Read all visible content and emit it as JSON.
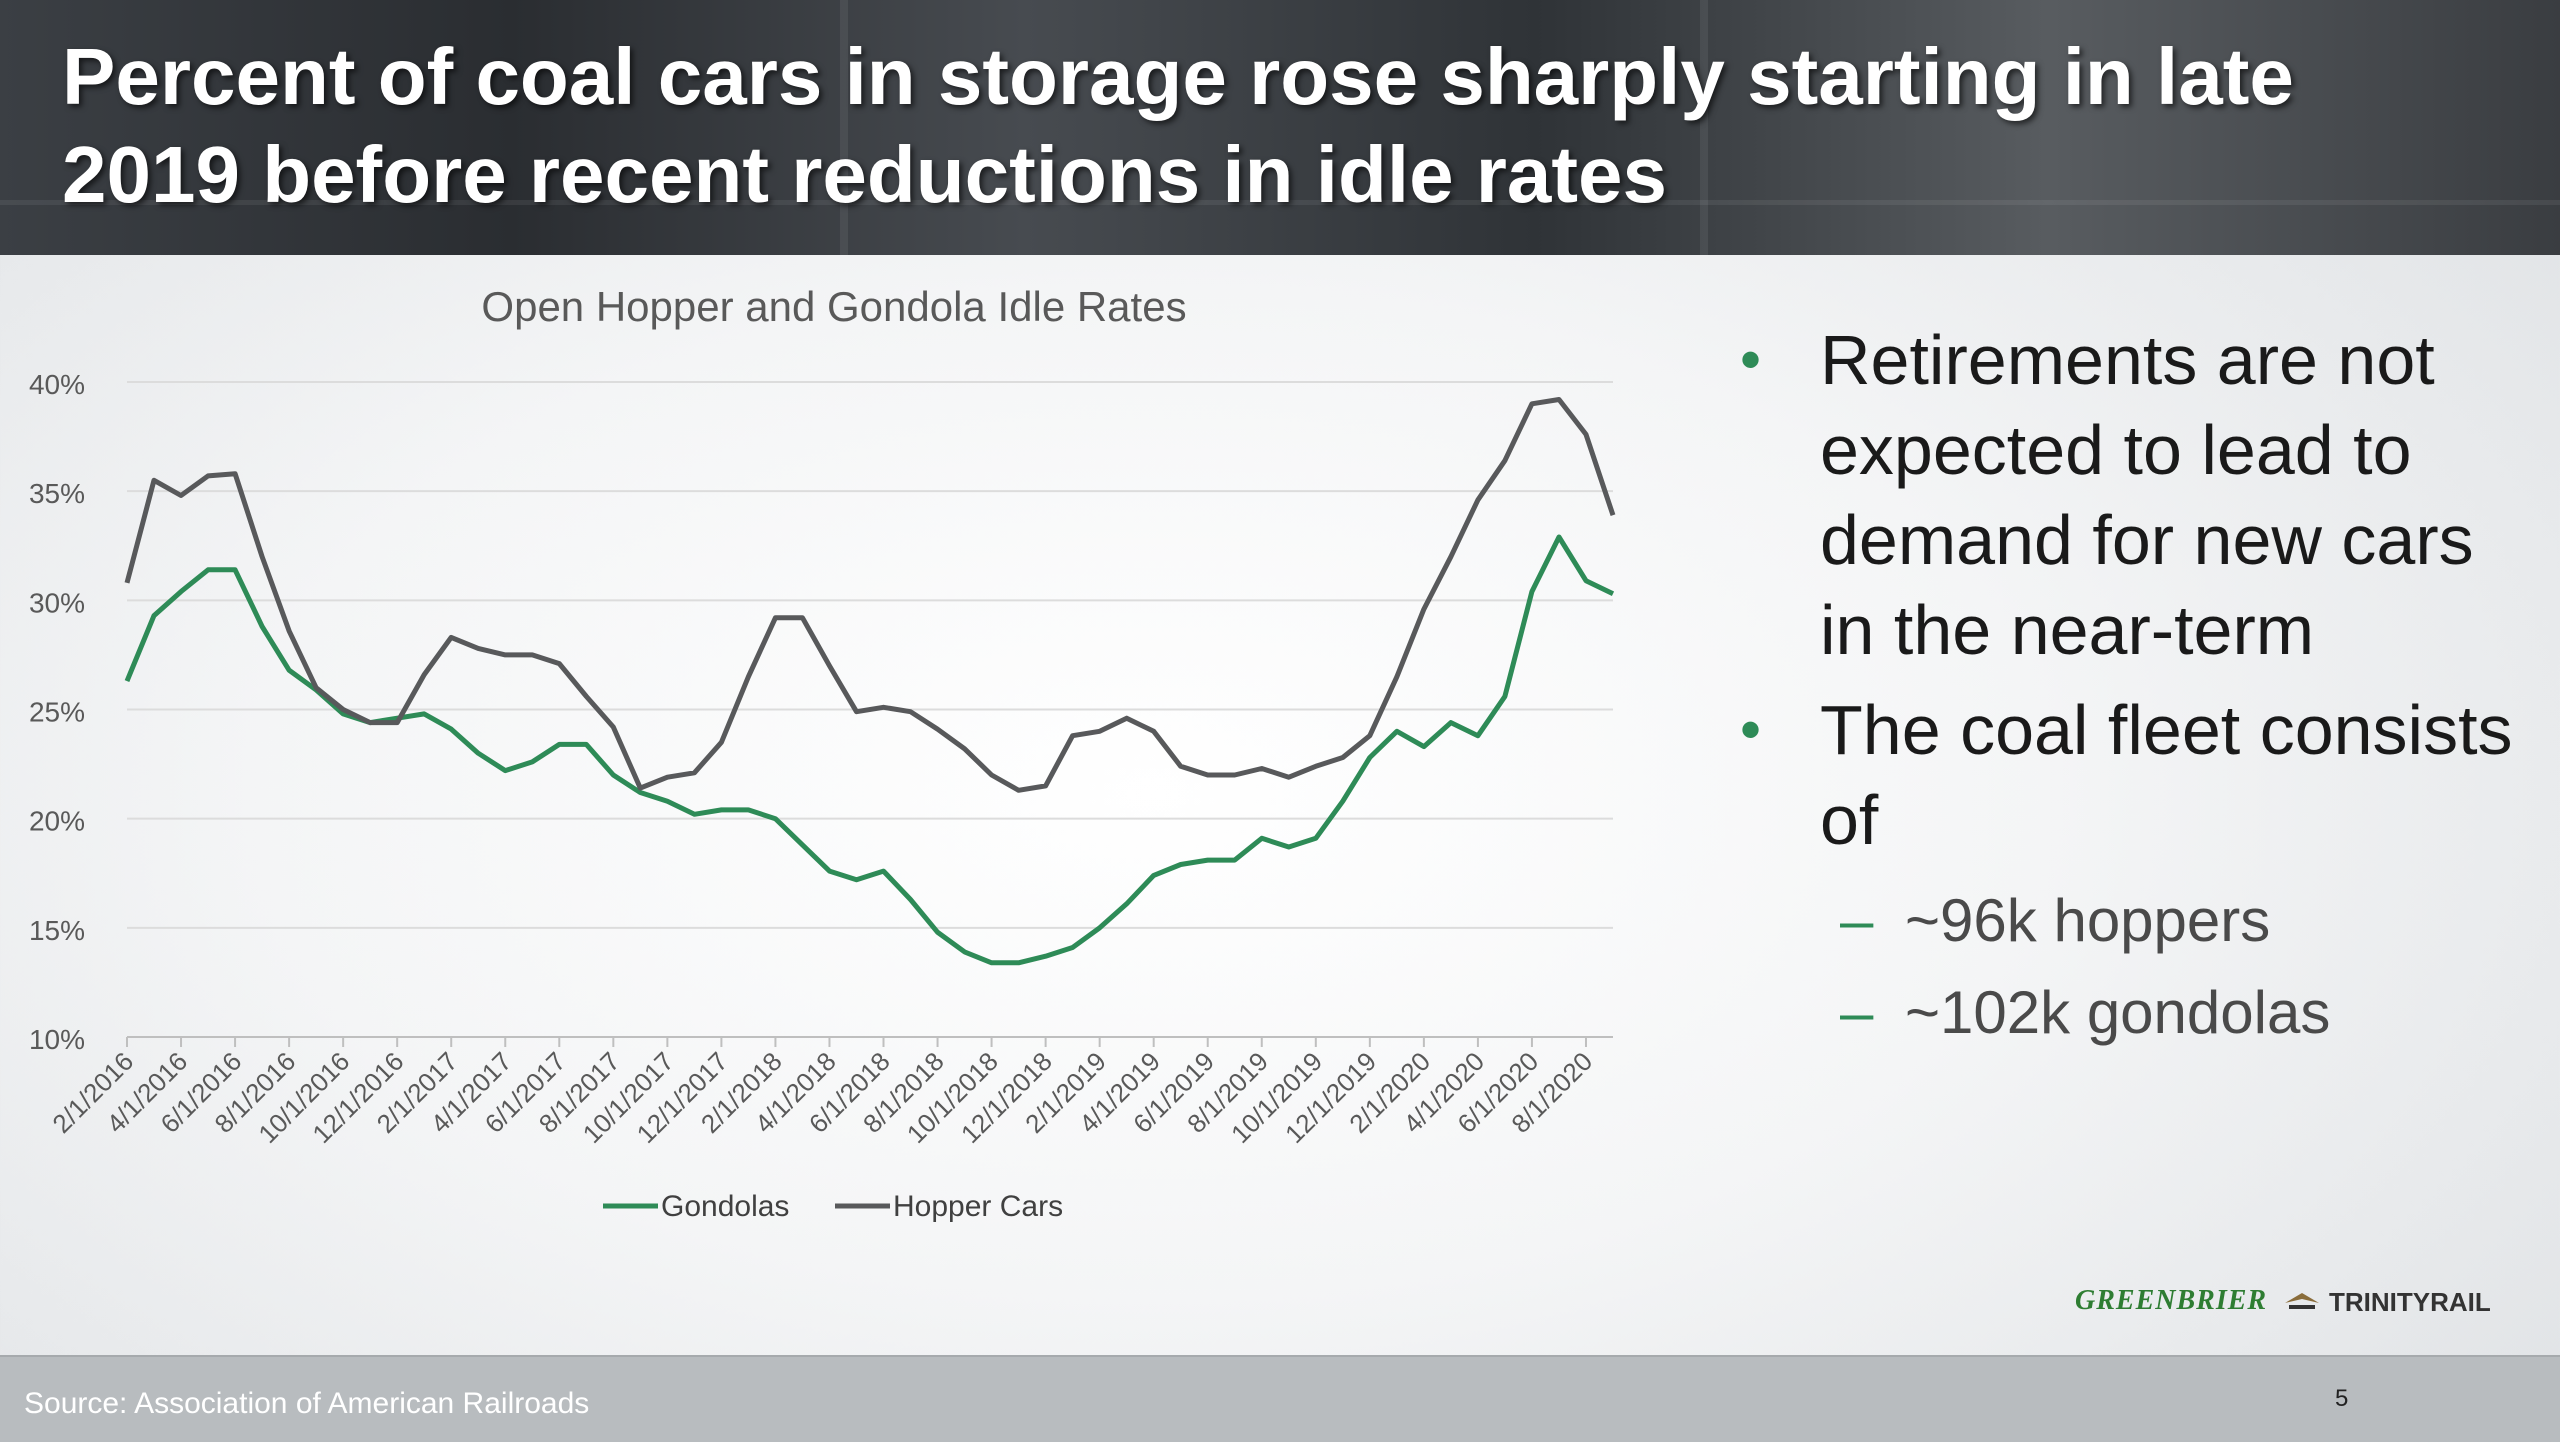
{
  "title": "Percent of coal cars in storage rose sharply starting in late 2019 before recent reductions in idle rates",
  "bullets": [
    {
      "text": "Retirements are not expected to lead to demand for new cars in the near-term"
    },
    {
      "text": "The coal fleet consists of",
      "subs": [
        "~96k hoppers",
        "~102k gondolas"
      ]
    }
  ],
  "bullet_symbol": "•",
  "sub_symbol": "–",
  "logos": {
    "greenbrier": "GREENBRIER",
    "trinity": "TRINITYRAIL"
  },
  "footer": {
    "source": "Source: Association of American Railroads",
    "page_number": "5"
  },
  "colors": {
    "gondolas": "#2e8b57",
    "hopper": "#58595b",
    "accent": "#2e8b57"
  },
  "chart_data": {
    "type": "line",
    "title": "Open Hopper and Gondola Idle Rates",
    "xlabel": "",
    "ylabel": "",
    "ylim": [
      10,
      40
    ],
    "yticks": [
      10,
      15,
      20,
      25,
      30,
      35,
      40
    ],
    "ytick_labels": [
      "10%",
      "15%",
      "20%",
      "25%",
      "30%",
      "35%",
      "40%"
    ],
    "grid": true,
    "legend": "bottom",
    "x_tick_labels": [
      "2/1/2016",
      "4/1/2016",
      "6/1/2016",
      "8/1/2016",
      "10/1/2016",
      "12/1/2016",
      "2/1/2017",
      "4/1/2017",
      "6/1/2017",
      "8/1/2017",
      "10/1/2017",
      "12/1/2017",
      "2/1/2018",
      "4/1/2018",
      "6/1/2018",
      "8/1/2018",
      "10/1/2018",
      "12/1/2018",
      "2/1/2019",
      "4/1/2019",
      "6/1/2019",
      "8/1/2019",
      "10/1/2019",
      "12/1/2019",
      "2/1/2020",
      "4/1/2020",
      "6/1/2020",
      "8/1/2020"
    ],
    "series": [
      {
        "name": "Gondolas",
        "values": [
          26.3,
          29.3,
          30.4,
          31.4,
          31.4,
          28.8,
          26.8,
          25.9,
          24.8,
          24.4,
          24.6,
          24.8,
          24.1,
          23.0,
          22.2,
          22.6,
          23.4,
          23.4,
          22.0,
          21.2,
          20.8,
          20.2,
          20.4,
          20.4,
          20.0,
          18.8,
          17.6,
          17.2,
          17.6,
          16.3,
          14.8,
          13.9,
          13.4,
          13.4,
          13.7,
          14.1,
          15.0,
          16.1,
          17.4,
          17.9,
          18.1,
          18.1,
          19.1,
          18.7,
          19.1,
          20.8,
          22.8,
          24.0,
          23.3,
          24.4,
          23.8,
          25.6,
          30.4,
          32.9,
          30.9,
          30.3
        ]
      },
      {
        "name": "Hopper Cars",
        "values": [
          30.8,
          35.5,
          34.8,
          35.7,
          35.8,
          32.0,
          28.6,
          26.0,
          25.0,
          24.4,
          24.4,
          26.6,
          28.3,
          27.8,
          27.5,
          27.5,
          27.1,
          25.6,
          24.2,
          21.4,
          21.9,
          22.1,
          23.5,
          26.5,
          29.2,
          29.2,
          27.0,
          24.9,
          25.1,
          24.9,
          24.1,
          23.2,
          22.0,
          21.3,
          21.5,
          23.8,
          24.0,
          24.6,
          24.0,
          22.4,
          22.0,
          22.0,
          22.3,
          21.9,
          22.4,
          22.8,
          23.8,
          26.5,
          29.6,
          32.0,
          34.6,
          36.4,
          39.0,
          39.2,
          37.6,
          33.9
        ]
      }
    ]
  }
}
